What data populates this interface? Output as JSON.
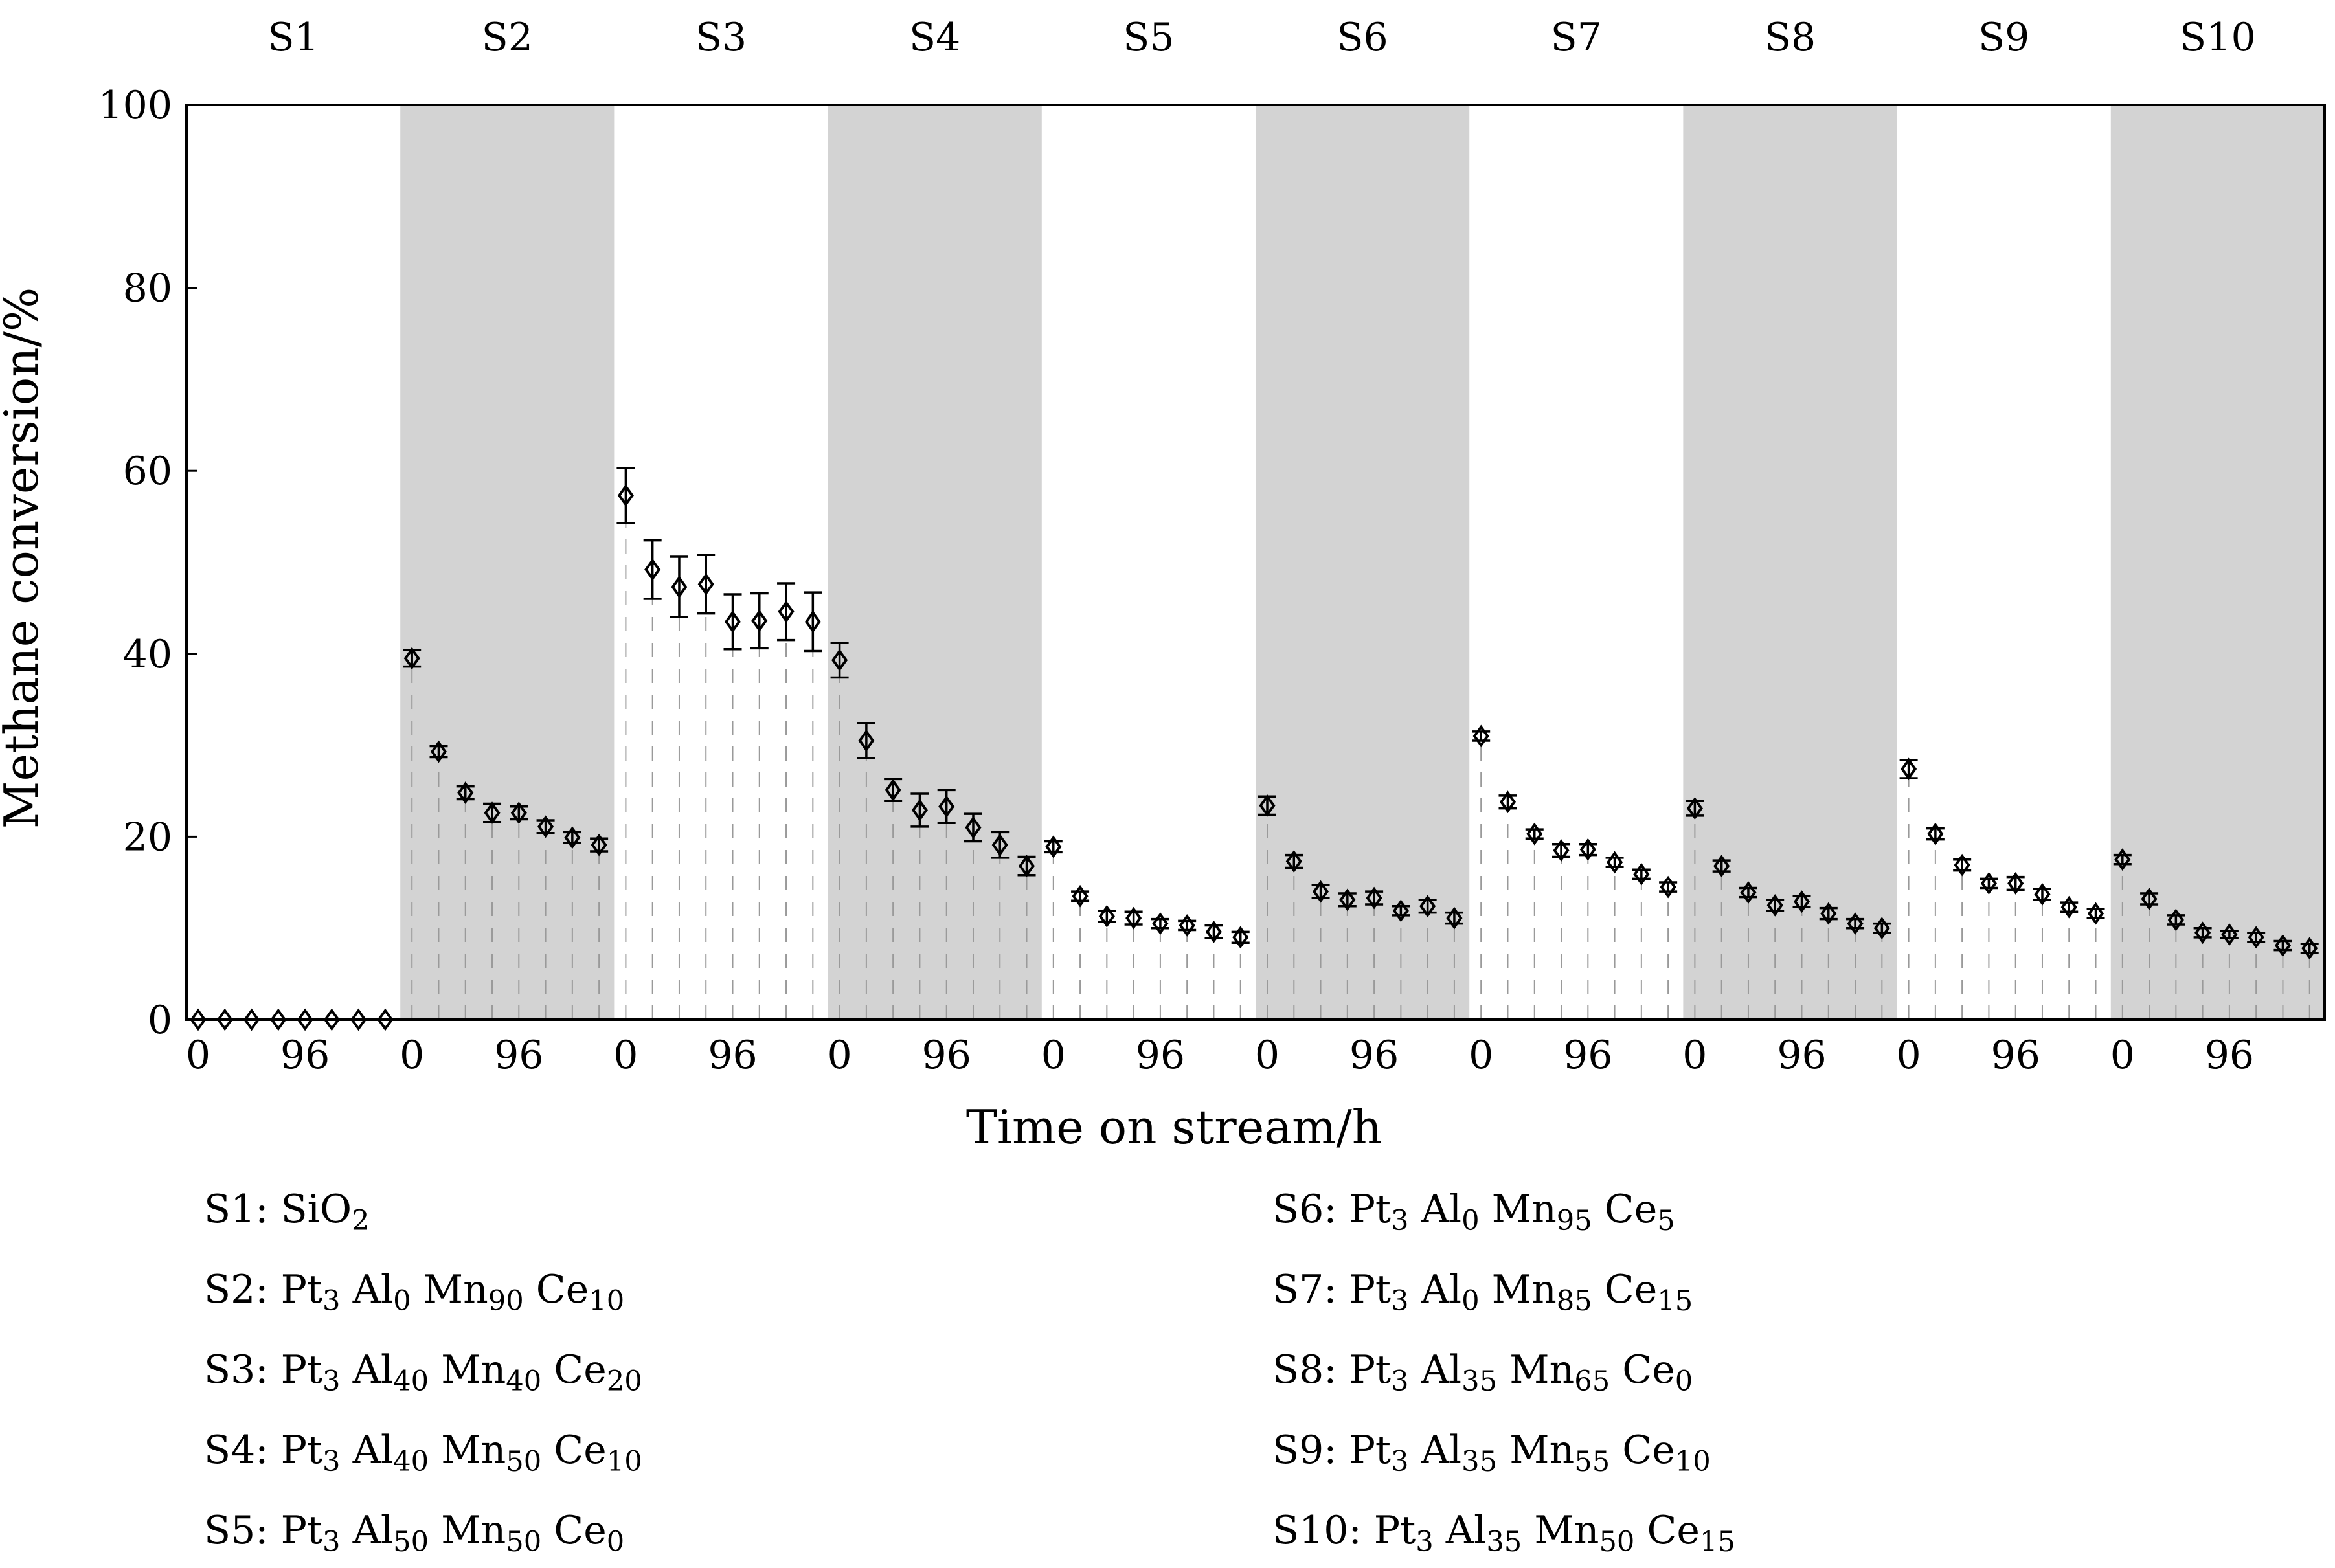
{
  "chart_data": {
    "type": "scatter",
    "ylabel": "Methane conversion/%",
    "xlabel": "Time on stream/h",
    "ylim": [
      0,
      100
    ],
    "yticks": [
      0,
      20,
      40,
      60,
      80,
      100
    ],
    "xtick_labels": [
      "0",
      "96"
    ],
    "hours_per_point": 24,
    "shaded_segments": [
      "S2",
      "S4",
      "S6",
      "S8",
      "S10"
    ],
    "marker": "diamond",
    "segments": [
      {
        "name": "S1",
        "values": [
          0,
          0,
          0,
          0,
          0,
          0,
          0,
          0
        ],
        "errors": [
          0,
          0,
          0,
          0,
          0,
          0,
          0,
          0
        ]
      },
      {
        "name": "S2",
        "values": [
          39.5,
          29.3,
          24.8,
          22.6,
          22.6,
          21.1,
          19.9,
          19.1
        ],
        "errors": [
          0.9,
          0.6,
          0.7,
          1.0,
          0.7,
          0.7,
          0.6,
          0.7
        ]
      },
      {
        "name": "S3",
        "values": [
          57.3,
          49.2,
          47.3,
          47.6,
          43.5,
          43.6,
          44.6,
          43.5
        ],
        "errors": [
          3.0,
          3.2,
          3.3,
          3.2,
          3.0,
          3.0,
          3.1,
          3.2
        ]
      },
      {
        "name": "S4",
        "values": [
          39.3,
          30.5,
          25.1,
          22.9,
          23.3,
          21.0,
          19.1,
          16.8
        ],
        "errors": [
          1.9,
          1.9,
          1.2,
          1.8,
          1.8,
          1.5,
          1.4,
          1.0
        ]
      },
      {
        "name": "S5",
        "values": [
          18.9,
          13.5,
          11.3,
          11.1,
          10.5,
          10.3,
          9.6,
          9.0
        ],
        "errors": [
          0.6,
          0.5,
          0.6,
          0.7,
          0.5,
          0.5,
          0.7,
          0.6
        ]
      },
      {
        "name": "S6",
        "values": [
          23.4,
          17.3,
          14.0,
          13.1,
          13.3,
          11.9,
          12.4,
          11.1
        ],
        "errors": [
          1.0,
          0.7,
          0.7,
          0.7,
          0.7,
          0.5,
          0.7,
          0.6
        ]
      },
      {
        "name": "S7",
        "values": [
          31.0,
          23.8,
          20.3,
          18.5,
          18.6,
          17.2,
          15.9,
          14.5
        ],
        "errors": [
          0.5,
          0.7,
          0.5,
          0.7,
          0.6,
          0.5,
          0.5,
          0.5
        ]
      },
      {
        "name": "S8",
        "values": [
          23.1,
          16.8,
          13.9,
          12.5,
          12.9,
          11.6,
          10.5,
          10.0
        ],
        "errors": [
          0.8,
          0.6,
          0.5,
          0.6,
          0.6,
          0.6,
          0.5,
          0.5
        ]
      },
      {
        "name": "S9",
        "values": [
          27.4,
          20.3,
          16.9,
          14.9,
          14.9,
          13.7,
          12.3,
          11.6
        ],
        "errors": [
          1.0,
          0.6,
          0.6,
          0.5,
          0.7,
          0.6,
          0.5,
          0.5
        ]
      },
      {
        "name": "S10",
        "values": [
          17.5,
          13.2,
          10.9,
          9.5,
          9.3,
          9.0,
          8.1,
          7.8
        ],
        "errors": [
          0.5,
          0.6,
          0.5,
          0.5,
          0.4,
          0.5,
          0.5,
          0.5
        ]
      }
    ],
    "legend": [
      {
        "name": "S1",
        "label": "S1: SiO2",
        "parts": [
          {
            "t": "S1: SiO"
          },
          {
            "t": "2",
            "sub": true
          }
        ]
      },
      {
        "name": "S2",
        "label": "S2: Pt3 Al0 Mn90 Ce10",
        "parts": [
          {
            "t": "S2: Pt"
          },
          {
            "t": "3",
            "sub": true
          },
          {
            "t": " Al"
          },
          {
            "t": "0",
            "sub": true
          },
          {
            "t": " Mn"
          },
          {
            "t": "90",
            "sub": true
          },
          {
            "t": " Ce"
          },
          {
            "t": "10",
            "sub": true
          }
        ]
      },
      {
        "name": "S3",
        "label": "S3: Pt3 Al40 Mn40 Ce20",
        "parts": [
          {
            "t": "S3: Pt"
          },
          {
            "t": "3",
            "sub": true
          },
          {
            "t": " Al"
          },
          {
            "t": "40",
            "sub": true
          },
          {
            "t": " Mn"
          },
          {
            "t": "40",
            "sub": true
          },
          {
            "t": " Ce"
          },
          {
            "t": "20",
            "sub": true
          }
        ]
      },
      {
        "name": "S4",
        "label": "S4: Pt3 Al40 Mn50 Ce10",
        "parts": [
          {
            "t": "S4: Pt"
          },
          {
            "t": "3",
            "sub": true
          },
          {
            "t": " Al"
          },
          {
            "t": "40",
            "sub": true
          },
          {
            "t": " Mn"
          },
          {
            "t": "50",
            "sub": true
          },
          {
            "t": " Ce"
          },
          {
            "t": "10",
            "sub": true
          }
        ]
      },
      {
        "name": "S5",
        "label": "S5: Pt3 Al50 Mn50 Ce0",
        "parts": [
          {
            "t": "S5: Pt"
          },
          {
            "t": "3",
            "sub": true
          },
          {
            "t": " Al"
          },
          {
            "t": "50",
            "sub": true
          },
          {
            "t": " Mn"
          },
          {
            "t": "50",
            "sub": true
          },
          {
            "t": " Ce"
          },
          {
            "t": "0",
            "sub": true
          }
        ]
      },
      {
        "name": "S6",
        "label": "S6: Pt3 Al0 Mn95 Ce5",
        "parts": [
          {
            "t": "S6: Pt"
          },
          {
            "t": "3",
            "sub": true
          },
          {
            "t": " Al"
          },
          {
            "t": "0",
            "sub": true
          },
          {
            "t": " Mn"
          },
          {
            "t": "95",
            "sub": true
          },
          {
            "t": " Ce"
          },
          {
            "t": "5",
            "sub": true
          }
        ]
      },
      {
        "name": "S7",
        "label": "S7: Pt3 Al0 Mn85 Ce15",
        "parts": [
          {
            "t": "S7: Pt"
          },
          {
            "t": "3",
            "sub": true
          },
          {
            "t": " Al"
          },
          {
            "t": "0",
            "sub": true
          },
          {
            "t": " Mn"
          },
          {
            "t": "85",
            "sub": true
          },
          {
            "t": " Ce"
          },
          {
            "t": "15",
            "sub": true
          }
        ]
      },
      {
        "name": "S8",
        "label": "S8: Pt3 Al35 Mn65 Ce0",
        "parts": [
          {
            "t": "S8: Pt"
          },
          {
            "t": "3",
            "sub": true
          },
          {
            "t": " Al"
          },
          {
            "t": "35",
            "sub": true
          },
          {
            "t": " Mn"
          },
          {
            "t": "65",
            "sub": true
          },
          {
            "t": " Ce"
          },
          {
            "t": "0",
            "sub": true
          }
        ]
      },
      {
        "name": "S9",
        "label": "S9: Pt3 Al35 Mn55 Ce10",
        "parts": [
          {
            "t": "S9: Pt"
          },
          {
            "t": "3",
            "sub": true
          },
          {
            "t": " Al"
          },
          {
            "t": "35",
            "sub": true
          },
          {
            "t": " Mn"
          },
          {
            "t": "55",
            "sub": true
          },
          {
            "t": " Ce"
          },
          {
            "t": "10",
            "sub": true
          }
        ]
      },
      {
        "name": "S10",
        "label": "S10: Pt3 Al35 Mn50 Ce15",
        "parts": [
          {
            "t": "S10: Pt"
          },
          {
            "t": "3",
            "sub": true
          },
          {
            "t": " Al"
          },
          {
            "t": "35",
            "sub": true
          },
          {
            "t": " Mn"
          },
          {
            "t": "50",
            "sub": true
          },
          {
            "t": " Ce"
          },
          {
            "t": "15",
            "sub": true
          }
        ]
      }
    ]
  }
}
